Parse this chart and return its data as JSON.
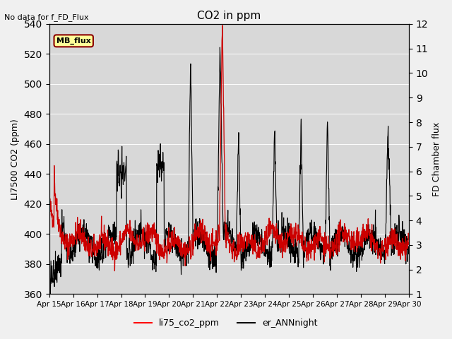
{
  "title": "CO2 in ppm",
  "top_left_text": "No data for f_FD_Flux",
  "annotation_box": "MB_flux",
  "ylabel_left": "LI7500 CO2 (ppm)",
  "ylabel_right": "FD Chamber flux",
  "ylim_left": [
    360,
    540
  ],
  "ylim_right": [
    1.0,
    12.0
  ],
  "yticks_left": [
    360,
    380,
    400,
    420,
    440,
    460,
    480,
    500,
    520,
    540
  ],
  "yticks_right": [
    1.0,
    2.0,
    3.0,
    4.0,
    5.0,
    6.0,
    7.0,
    8.0,
    9.0,
    10.0,
    11.0,
    12.0
  ],
  "xticklabels": [
    "Apr 15",
    "Apr 16",
    "Apr 17",
    "Apr 18",
    "Apr 19",
    "Apr 20",
    "Apr 21",
    "Apr 22",
    "Apr 23",
    "Apr 24",
    "Apr 25",
    "Apr 26",
    "Apr 27",
    "Apr 28",
    "Apr 29",
    "Apr 30"
  ],
  "legend_labels": [
    "li75_co2_ppm",
    "er_ANNnight"
  ],
  "legend_colors": [
    "red",
    "black"
  ],
  "background_color": "#e8e8e8",
  "plot_bg_color": "#d8d8d8",
  "line_color_red": "#cc0000",
  "line_color_black": "#000000"
}
